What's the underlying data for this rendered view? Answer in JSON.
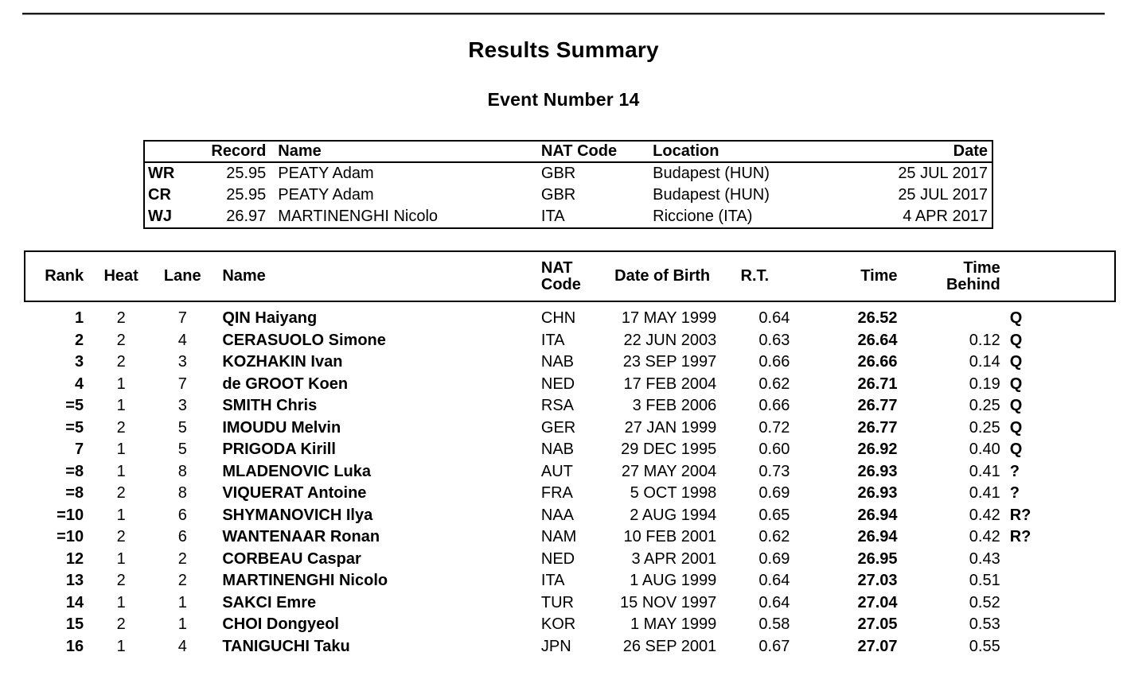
{
  "page": {
    "title": "Results Summary",
    "subtitle": "Event Number 14"
  },
  "records_table": {
    "headers": {
      "type": "",
      "record": "Record",
      "name": "Name",
      "nat": "NAT Code",
      "location": "Location",
      "date": "Date"
    },
    "rows": [
      {
        "type": "WR",
        "record": "25.95",
        "name": "PEATY Adam",
        "nat": "GBR",
        "location": "Budapest (HUN)",
        "date": "25 JUL 2017"
      },
      {
        "type": "CR",
        "record": "25.95",
        "name": "PEATY Adam",
        "nat": "GBR",
        "location": "Budapest (HUN)",
        "date": "25 JUL 2017"
      },
      {
        "type": "WJ",
        "record": "26.97",
        "name": "MARTINENGHI Nicolo",
        "nat": "ITA",
        "location": "Riccione (ITA)",
        "date": "4 APR 2017"
      }
    ]
  },
  "results_table": {
    "headers": {
      "rank": "Rank",
      "heat": "Heat",
      "lane": "Lane",
      "name": "Name",
      "nat": "NAT\nCode",
      "dob": "Date of Birth",
      "rt": "R.T.",
      "time": "Time",
      "behind": "Time\nBehind",
      "qual": ""
    },
    "rows": [
      {
        "rank": "1",
        "heat": "2",
        "lane": "7",
        "name": "QIN Haiyang",
        "nat": "CHN",
        "dob": "17 MAY 1999",
        "rt": "0.64",
        "time": "26.52",
        "behind": "",
        "qual": "Q"
      },
      {
        "rank": "2",
        "heat": "2",
        "lane": "4",
        "name": "CERASUOLO Simone",
        "nat": "ITA",
        "dob": "22 JUN 2003",
        "rt": "0.63",
        "time": "26.64",
        "behind": "0.12",
        "qual": "Q"
      },
      {
        "rank": "3",
        "heat": "2",
        "lane": "3",
        "name": "KOZHAKIN Ivan",
        "nat": "NAB",
        "dob": "23 SEP 1997",
        "rt": "0.66",
        "time": "26.66",
        "behind": "0.14",
        "qual": "Q"
      },
      {
        "rank": "4",
        "heat": "1",
        "lane": "7",
        "name": "de GROOT Koen",
        "nat": "NED",
        "dob": "17 FEB 2004",
        "rt": "0.62",
        "time": "26.71",
        "behind": "0.19",
        "qual": "Q"
      },
      {
        "rank": "=5",
        "heat": "1",
        "lane": "3",
        "name": "SMITH Chris",
        "nat": "RSA",
        "dob": "3 FEB 2006",
        "rt": "0.66",
        "time": "26.77",
        "behind": "0.25",
        "qual": "Q"
      },
      {
        "rank": "=5",
        "heat": "2",
        "lane": "5",
        "name": "IMOUDU Melvin",
        "nat": "GER",
        "dob": "27 JAN 1999",
        "rt": "0.72",
        "time": "26.77",
        "behind": "0.25",
        "qual": "Q"
      },
      {
        "rank": "7",
        "heat": "1",
        "lane": "5",
        "name": "PRIGODA Kirill",
        "nat": "NAB",
        "dob": "29 DEC 1995",
        "rt": "0.60",
        "time": "26.92",
        "behind": "0.40",
        "qual": "Q"
      },
      {
        "rank": "=8",
        "heat": "1",
        "lane": "8",
        "name": "MLADENOVIC Luka",
        "nat": "AUT",
        "dob": "27 MAY 2004",
        "rt": "0.73",
        "time": "26.93",
        "behind": "0.41",
        "qual": "?"
      },
      {
        "rank": "=8",
        "heat": "2",
        "lane": "8",
        "name": "VIQUERAT Antoine",
        "nat": "FRA",
        "dob": "5 OCT 1998",
        "rt": "0.69",
        "time": "26.93",
        "behind": "0.41",
        "qual": "?"
      },
      {
        "rank": "=10",
        "heat": "1",
        "lane": "6",
        "name": "SHYMANOVICH Ilya",
        "nat": "NAA",
        "dob": "2 AUG 1994",
        "rt": "0.65",
        "time": "26.94",
        "behind": "0.42",
        "qual": "R?"
      },
      {
        "rank": "=10",
        "heat": "2",
        "lane": "6",
        "name": "WANTENAAR Ronan",
        "nat": "NAM",
        "dob": "10 FEB 2001",
        "rt": "0.62",
        "time": "26.94",
        "behind": "0.42",
        "qual": "R?"
      },
      {
        "rank": "12",
        "heat": "1",
        "lane": "2",
        "name": "CORBEAU Caspar",
        "nat": "NED",
        "dob": "3 APR 2001",
        "rt": "0.69",
        "time": "26.95",
        "behind": "0.43",
        "qual": ""
      },
      {
        "rank": "13",
        "heat": "2",
        "lane": "2",
        "name": "MARTINENGHI Nicolo",
        "nat": "ITA",
        "dob": "1 AUG 1999",
        "rt": "0.64",
        "time": "27.03",
        "behind": "0.51",
        "qual": ""
      },
      {
        "rank": "14",
        "heat": "1",
        "lane": "1",
        "name": "SAKCI Emre",
        "nat": "TUR",
        "dob": "15 NOV 1997",
        "rt": "0.64",
        "time": "27.04",
        "behind": "0.52",
        "qual": ""
      },
      {
        "rank": "15",
        "heat": "2",
        "lane": "1",
        "name": "CHOI Dongyeol",
        "nat": "KOR",
        "dob": "1 MAY 1999",
        "rt": "0.58",
        "time": "27.05",
        "behind": "0.53",
        "qual": ""
      },
      {
        "rank": "16",
        "heat": "1",
        "lane": "4",
        "name": "TANIGUCHI Taku",
        "nat": "JPN",
        "dob": "26 SEP 2001",
        "rt": "0.67",
        "time": "27.07",
        "behind": "0.55",
        "qual": ""
      }
    ]
  }
}
